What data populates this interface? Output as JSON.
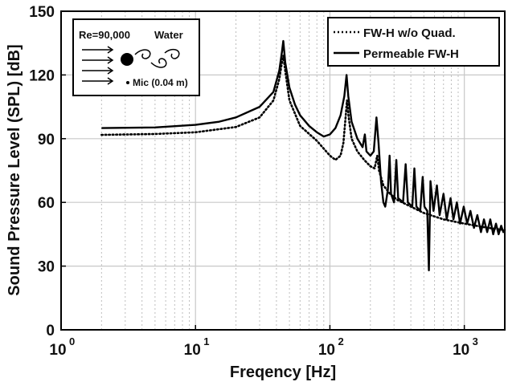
{
  "chart_data": {
    "type": "line",
    "xscale": "log",
    "xlabel": "Freqency [Hz]",
    "ylabel": "Sound Pressure Level (SPL) [dB]",
    "xlim": [
      1,
      2000
    ],
    "ylim": [
      0,
      150
    ],
    "grid": true,
    "x_ticks": [
      {
        "value": 1,
        "base": "10",
        "exp": "0"
      },
      {
        "value": 10,
        "base": "10",
        "exp": "1"
      },
      {
        "value": 100,
        "base": "10",
        "exp": "2"
      },
      {
        "value": 1000,
        "base": "10",
        "exp": "3"
      }
    ],
    "y_ticks": [
      "0",
      "30",
      "60",
      "90",
      "120",
      "150"
    ],
    "legend": {
      "position": "top-right",
      "entries": [
        {
          "label": "FW-H w/o Quad.",
          "style": "dotted"
        },
        {
          "label": "Permeable FW-H",
          "style": "solid"
        }
      ]
    },
    "inset": {
      "title": "Re=90,000",
      "medium": "Water",
      "mic_label": "Mic (0.04 m)",
      "position": "top-left"
    },
    "series": [
      {
        "name": "FW-H w/o Quad.",
        "style": "dotted",
        "color": "#000000",
        "points": [
          [
            2,
            91.8
          ],
          [
            5,
            92.2
          ],
          [
            10,
            93
          ],
          [
            20,
            95.5
          ],
          [
            30,
            100
          ],
          [
            38,
            108
          ],
          [
            42,
            118
          ],
          [
            44,
            126
          ],
          [
            45,
            129
          ],
          [
            46.5,
            122
          ],
          [
            50,
            108
          ],
          [
            60,
            96
          ],
          [
            80,
            89
          ],
          [
            100,
            82
          ],
          [
            110,
            80
          ],
          [
            120,
            82
          ],
          [
            126,
            88
          ],
          [
            130,
            98
          ],
          [
            134,
            108
          ],
          [
            138,
            100
          ],
          [
            145,
            90
          ],
          [
            160,
            84
          ],
          [
            180,
            80
          ],
          [
            200,
            77
          ],
          [
            215,
            76
          ],
          [
            225,
            82
          ],
          [
            232,
            75
          ],
          [
            250,
            68
          ],
          [
            280,
            64
          ],
          [
            320,
            61
          ],
          [
            400,
            58
          ],
          [
            500,
            55
          ],
          [
            700,
            52
          ],
          [
            1000,
            50
          ],
          [
            1500,
            48
          ],
          [
            2000,
            47
          ]
        ]
      },
      {
        "name": "Permeable FW-H",
        "style": "solid",
        "color": "#000000",
        "points": [
          [
            2,
            95
          ],
          [
            5,
            95.3
          ],
          [
            10,
            96.5
          ],
          [
            15,
            98
          ],
          [
            20,
            100
          ],
          [
            30,
            105
          ],
          [
            38,
            112
          ],
          [
            42,
            122
          ],
          [
            44,
            131
          ],
          [
            45,
            136
          ],
          [
            46.5,
            126
          ],
          [
            50,
            114
          ],
          [
            55,
            106
          ],
          [
            60,
            101
          ],
          [
            70,
            96
          ],
          [
            80,
            93
          ],
          [
            90,
            91
          ],
          [
            100,
            92
          ],
          [
            110,
            95
          ],
          [
            120,
            101
          ],
          [
            128,
            110
          ],
          [
            133,
            120
          ],
          [
            137,
            110
          ],
          [
            145,
            98
          ],
          [
            160,
            90
          ],
          [
            175,
            86
          ],
          [
            182,
            92
          ],
          [
            187,
            84
          ],
          [
            200,
            82
          ],
          [
            212,
            84
          ],
          [
            222,
            100
          ],
          [
            230,
            88
          ],
          [
            240,
            70
          ],
          [
            250,
            60
          ],
          [
            258,
            58
          ],
          [
            270,
            66
          ],
          [
            278,
            82
          ],
          [
            285,
            64
          ],
          [
            300,
            60
          ],
          [
            312,
            80
          ],
          [
            322,
            62
          ],
          [
            350,
            60
          ],
          [
            366,
            78
          ],
          [
            380,
            60
          ],
          [
            410,
            58
          ],
          [
            425,
            76
          ],
          [
            440,
            58
          ],
          [
            470,
            56
          ],
          [
            490,
            72
          ],
          [
            505,
            58
          ],
          [
            530,
            56
          ],
          [
            545,
            28
          ],
          [
            560,
            70
          ],
          [
            590,
            56
          ],
          [
            625,
            68
          ],
          [
            655,
            54
          ],
          [
            700,
            64
          ],
          [
            740,
            52
          ],
          [
            790,
            62
          ],
          [
            830,
            52
          ],
          [
            880,
            60
          ],
          [
            930,
            50
          ],
          [
            990,
            58
          ],
          [
            1050,
            50
          ],
          [
            1110,
            56
          ],
          [
            1180,
            48
          ],
          [
            1250,
            54
          ],
          [
            1330,
            46
          ],
          [
            1400,
            52
          ],
          [
            1480,
            46
          ],
          [
            1560,
            52
          ],
          [
            1640,
            45
          ],
          [
            1720,
            50
          ],
          [
            1800,
            45
          ],
          [
            1880,
            49
          ],
          [
            1950,
            46
          ],
          [
            2000,
            47
          ]
        ]
      }
    ]
  }
}
